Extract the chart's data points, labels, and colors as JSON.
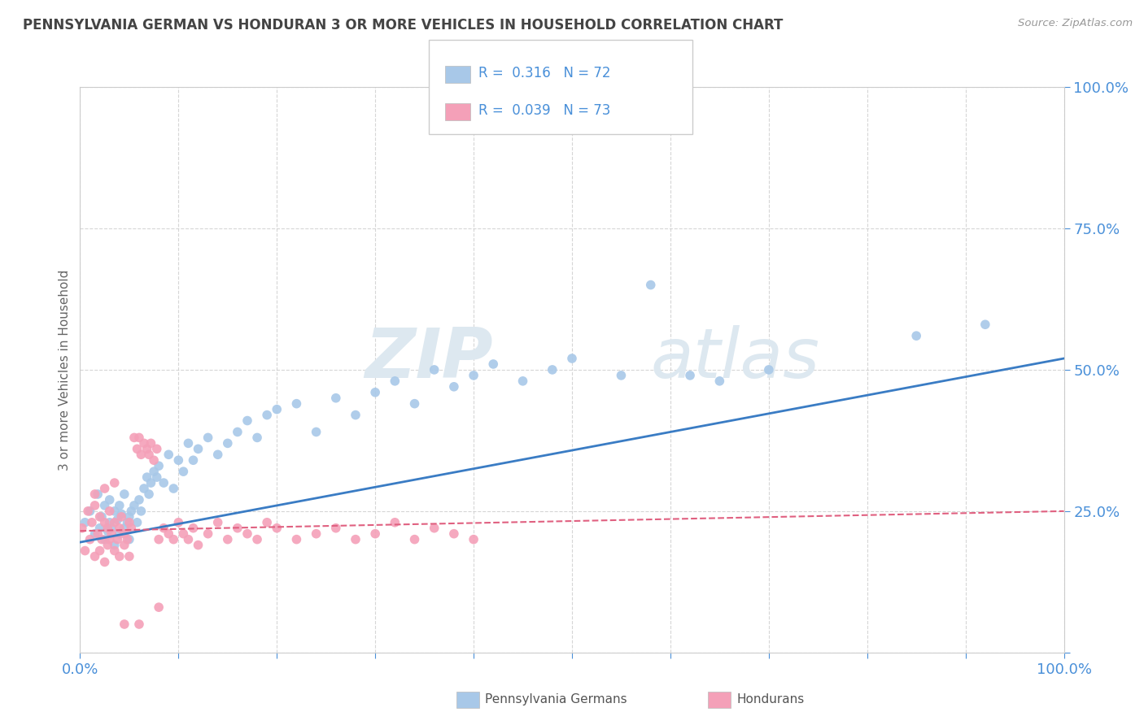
{
  "title": "PENNSYLVANIA GERMAN VS HONDURAN 3 OR MORE VEHICLES IN HOUSEHOLD CORRELATION CHART",
  "source": "Source: ZipAtlas.com",
  "ylabel": "3 or more Vehicles in Household",
  "xlim": [
    0,
    1.0
  ],
  "ylim": [
    0,
    1.0
  ],
  "xticks": [
    0.0,
    0.1,
    0.2,
    0.3,
    0.4,
    0.5,
    0.6,
    0.7,
    0.8,
    0.9,
    1.0
  ],
  "yticks": [
    0.0,
    0.25,
    0.5,
    0.75,
    1.0
  ],
  "blue_color": "#a8c8e8",
  "pink_color": "#f4a0b8",
  "blue_line_color": "#3a7cc4",
  "pink_line_color": "#e06080",
  "title_color": "#444444",
  "axis_label_color": "#666666",
  "tick_color": "#4a90d9",
  "watermark_color": "#e8eef5",
  "blue_scatter_x": [
    0.005,
    0.01,
    0.015,
    0.018,
    0.02,
    0.022,
    0.025,
    0.025,
    0.028,
    0.03,
    0.03,
    0.032,
    0.035,
    0.035,
    0.038,
    0.04,
    0.04,
    0.042,
    0.045,
    0.045,
    0.048,
    0.05,
    0.05,
    0.052,
    0.055,
    0.058,
    0.06,
    0.062,
    0.065,
    0.068,
    0.07,
    0.072,
    0.075,
    0.078,
    0.08,
    0.085,
    0.09,
    0.095,
    0.1,
    0.105,
    0.11,
    0.115,
    0.12,
    0.13,
    0.14,
    0.15,
    0.16,
    0.17,
    0.18,
    0.19,
    0.2,
    0.22,
    0.24,
    0.26,
    0.28,
    0.3,
    0.32,
    0.34,
    0.36,
    0.38,
    0.4,
    0.42,
    0.45,
    0.48,
    0.5,
    0.55,
    0.58,
    0.62,
    0.65,
    0.7,
    0.85,
    0.92
  ],
  "blue_scatter_y": [
    0.23,
    0.25,
    0.21,
    0.28,
    0.22,
    0.24,
    0.2,
    0.26,
    0.215,
    0.27,
    0.23,
    0.22,
    0.25,
    0.19,
    0.235,
    0.26,
    0.21,
    0.245,
    0.22,
    0.28,
    0.23,
    0.24,
    0.2,
    0.25,
    0.26,
    0.23,
    0.27,
    0.25,
    0.29,
    0.31,
    0.28,
    0.3,
    0.32,
    0.31,
    0.33,
    0.3,
    0.35,
    0.29,
    0.34,
    0.32,
    0.37,
    0.34,
    0.36,
    0.38,
    0.35,
    0.37,
    0.39,
    0.41,
    0.38,
    0.42,
    0.43,
    0.44,
    0.39,
    0.45,
    0.42,
    0.46,
    0.48,
    0.44,
    0.5,
    0.47,
    0.49,
    0.51,
    0.48,
    0.5,
    0.52,
    0.49,
    0.65,
    0.49,
    0.48,
    0.5,
    0.56,
    0.58
  ],
  "pink_scatter_x": [
    0.002,
    0.005,
    0.008,
    0.01,
    0.012,
    0.015,
    0.015,
    0.018,
    0.02,
    0.02,
    0.022,
    0.025,
    0.025,
    0.028,
    0.028,
    0.03,
    0.03,
    0.032,
    0.035,
    0.035,
    0.038,
    0.04,
    0.04,
    0.042,
    0.045,
    0.045,
    0.048,
    0.05,
    0.05,
    0.052,
    0.055,
    0.058,
    0.06,
    0.062,
    0.065,
    0.068,
    0.07,
    0.072,
    0.075,
    0.078,
    0.08,
    0.085,
    0.09,
    0.095,
    0.1,
    0.105,
    0.11,
    0.115,
    0.12,
    0.13,
    0.14,
    0.15,
    0.16,
    0.17,
    0.18,
    0.19,
    0.2,
    0.22,
    0.24,
    0.26,
    0.28,
    0.3,
    0.32,
    0.34,
    0.36,
    0.38,
    0.4,
    0.015,
    0.025,
    0.035,
    0.045,
    0.06,
    0.08
  ],
  "pink_scatter_y": [
    0.22,
    0.18,
    0.25,
    0.2,
    0.23,
    0.17,
    0.26,
    0.21,
    0.18,
    0.24,
    0.2,
    0.23,
    0.16,
    0.22,
    0.19,
    0.2,
    0.25,
    0.21,
    0.18,
    0.23,
    0.2,
    0.22,
    0.17,
    0.24,
    0.19,
    0.21,
    0.2,
    0.23,
    0.17,
    0.22,
    0.38,
    0.36,
    0.38,
    0.35,
    0.37,
    0.36,
    0.35,
    0.37,
    0.34,
    0.36,
    0.2,
    0.22,
    0.21,
    0.2,
    0.23,
    0.21,
    0.2,
    0.22,
    0.19,
    0.21,
    0.23,
    0.2,
    0.22,
    0.21,
    0.2,
    0.23,
    0.22,
    0.2,
    0.21,
    0.22,
    0.2,
    0.21,
    0.23,
    0.2,
    0.22,
    0.21,
    0.2,
    0.28,
    0.29,
    0.3,
    0.05,
    0.05,
    0.08
  ],
  "blue_line_intercept": 0.195,
  "blue_line_slope": 0.325,
  "pink_line_intercept": 0.215,
  "pink_line_slope": 0.035
}
